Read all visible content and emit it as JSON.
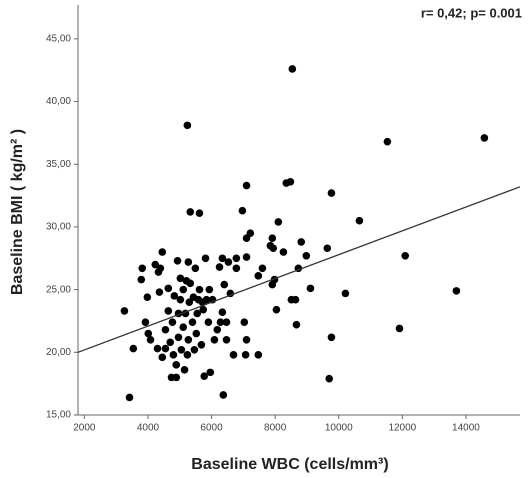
{
  "chart_data": {
    "type": "scatter",
    "annotation": "r= 0,42; p= 0.001",
    "x_label": "Baseline WBC (cells/mm³)",
    "y_label": "Baseline BMI ( kg/m² )",
    "xlim": [
      1800,
      15700
    ],
    "ylim": [
      15,
      47.7
    ],
    "xticks": [
      2000,
      4000,
      6000,
      8000,
      10000,
      12000,
      14000
    ],
    "yticks": [
      {
        "value": 15,
        "label": "15,00"
      },
      {
        "value": 20,
        "label": "20,00"
      },
      {
        "value": 25,
        "label": "25,00"
      },
      {
        "value": 30,
        "label": "30,00"
      },
      {
        "value": 35,
        "label": "35,00"
      },
      {
        "value": 40,
        "label": "40,00"
      },
      {
        "value": 45,
        "label": "45,00"
      }
    ],
    "color": "#000000",
    "x": [
      3260,
      3420,
      3540,
      3790,
      3820,
      3920,
      3980,
      4010,
      4080,
      4230,
      4330,
      4360,
      4390,
      4450,
      4300,
      4450,
      4550,
      4550,
      4640,
      4640,
      4700,
      4740,
      4770,
      4800,
      4830,
      4890,
      4890,
      4930,
      4960,
      4960,
      5020,
      5020,
      5050,
      5110,
      5110,
      5150,
      5180,
      5210,
      5240,
      5270,
      5270,
      5300,
      5330,
      5330,
      5240,
      5400,
      5430,
      5460,
      5490,
      5520,
      5550,
      5590,
      5620,
      5620,
      5680,
      5710,
      5740,
      5770,
      5810,
      5840,
      5900,
      5930,
      5960,
      6030,
      6090,
      6180,
      6250,
      6280,
      6340,
      6370,
      6340,
      6400,
      6470,
      6470,
      6530,
      6590,
      6690,
      6780,
      6780,
      6970,
      7070,
      7100,
      7030,
      7100,
      7100,
      7220,
      7100,
      7470,
      7470,
      7600,
      7850,
      7910,
      7940,
      7910,
      7980,
      8040,
      8100,
      8260,
      8350,
      8480,
      8510,
      8640,
      8540,
      8670,
      8730,
      8820,
      8980,
      9110,
      9640,
      9770,
      9770,
      9700,
      10210,
      10650,
      11530,
      11910,
      12090,
      13700,
      14580
    ],
    "y": [
      23.3,
      16.4,
      20.3,
      25.8,
      26.7,
      22.4,
      24.4,
      21.5,
      21.0,
      27.0,
      26.4,
      24.8,
      26.7,
      28.0,
      20.3,
      19.6,
      20.3,
      21.8,
      23.3,
      25.1,
      20.8,
      18.0,
      22.4,
      19.8,
      24.5,
      19.0,
      18.0,
      27.3,
      23.1,
      21.2,
      25.9,
      24.2,
      20.2,
      22.0,
      25.0,
      18.6,
      23.1,
      25.7,
      19.8,
      21.0,
      27.2,
      24.0,
      25.5,
      31.2,
      38.1,
      22.4,
      24.4,
      20.2,
      26.7,
      21.5,
      23.1,
      24.2,
      25.0,
      31.1,
      20.6,
      24.0,
      23.4,
      18.1,
      27.5,
      24.2,
      22.4,
      25.0,
      18.4,
      24.2,
      21.0,
      21.8,
      26.8,
      22.4,
      23.2,
      16.6,
      27.5,
      25.4,
      21.0,
      22.4,
      27.2,
      24.7,
      19.8,
      26.7,
      27.5,
      31.3,
      19.8,
      27.6,
      22.4,
      21.0,
      29.1,
      29.5,
      33.3,
      19.8,
      26.1,
      26.7,
      28.5,
      29.1,
      28.3,
      25.4,
      25.8,
      23.4,
      30.4,
      28.0,
      33.5,
      33.6,
      24.2,
      24.2,
      42.6,
      22.2,
      26.7,
      28.8,
      27.7,
      25.1,
      28.3,
      32.7,
      21.2,
      17.9,
      24.7,
      30.5,
      36.8,
      21.9,
      27.7,
      24.9,
      37.1
    ],
    "fit_line": {
      "x": [
        1800,
        15700
      ],
      "y": [
        20.0,
        33.2
      ]
    }
  }
}
